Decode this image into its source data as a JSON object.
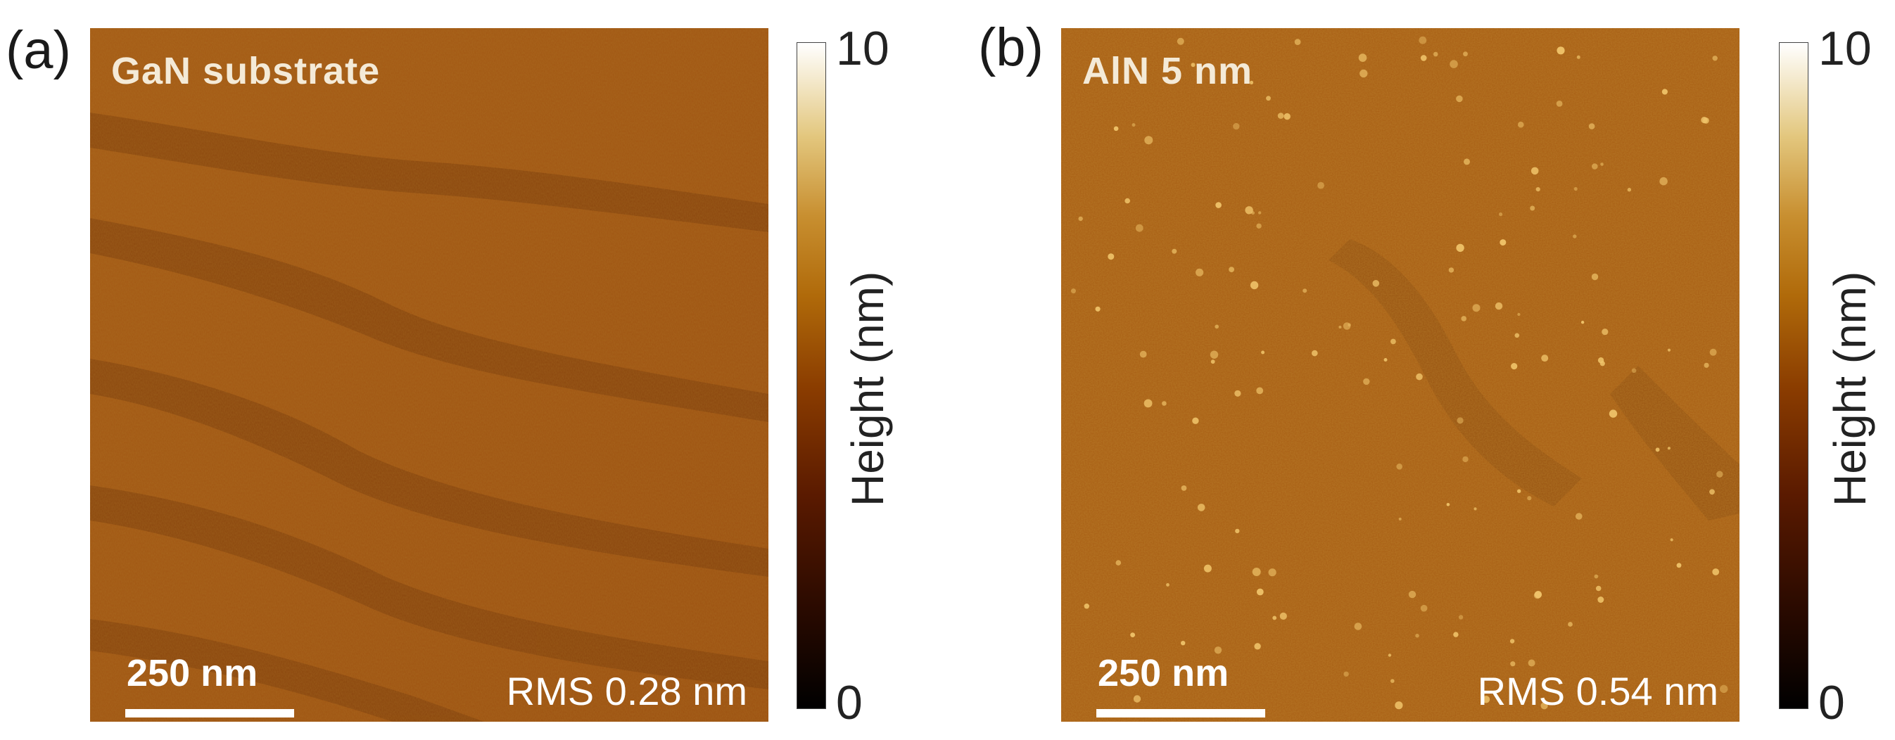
{
  "panels": [
    {
      "letter": "(a)",
      "title": "GaN substrate",
      "scale_bar_label": "250 nm",
      "rms_label": "RMS 0.28 nm",
      "colorbar": {
        "max_label": "10",
        "min_label": "0",
        "axis_label": "Height  (nm)"
      }
    },
    {
      "letter": "(b)",
      "title": "AlN 5 nm",
      "scale_bar_label": "250 nm",
      "rms_label": "RMS 0.54 nm",
      "colorbar": {
        "max_label": "10",
        "min_label": "0",
        "axis_label": "Height  (nm)"
      }
    }
  ],
  "colors": {
    "surface_base": "#a65a12",
    "surface_dark": "#7d3e0b",
    "grain_highlight": "#f0c46a"
  }
}
